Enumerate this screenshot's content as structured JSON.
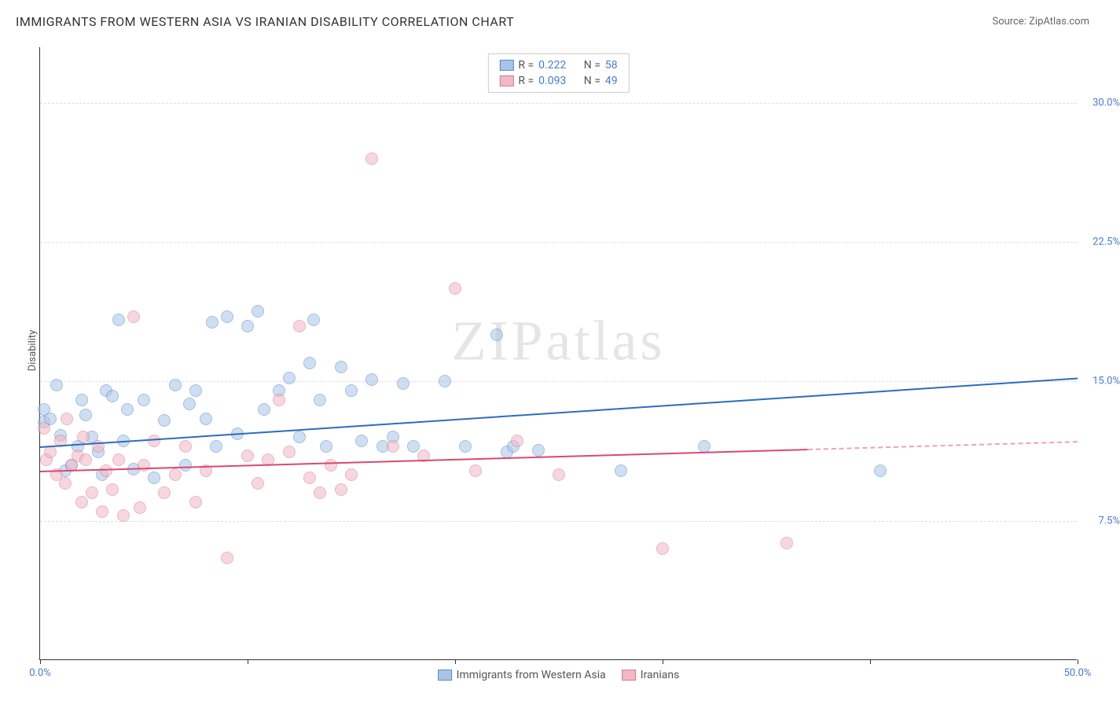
{
  "title": "IMMIGRANTS FROM WESTERN ASIA VS IRANIAN DISABILITY CORRELATION CHART",
  "source": "Source: ZipAtlas.com",
  "watermark": "ZIPatlas",
  "ylabel": "Disability",
  "chart": {
    "type": "scatter",
    "xlim": [
      0,
      50
    ],
    "ylim": [
      0,
      33
    ],
    "xticks": [
      0,
      10,
      20,
      30,
      40,
      50
    ],
    "xtick_labels": {
      "0": "0.0%",
      "50": "50.0%"
    },
    "yticks": [
      7.5,
      15.0,
      22.5,
      30.0
    ],
    "ytick_labels": [
      "7.5%",
      "15.0%",
      "22.5%",
      "30.0%"
    ],
    "grid_color": "#dddddd",
    "background_color": "#ffffff",
    "axis_color": "#333333",
    "marker_radius": 8,
    "marker_opacity": 0.55,
    "series": [
      {
        "name": "Immigrants from Western Asia",
        "fill": "#a8c5e8",
        "stroke": "#5a8bc4",
        "r": 0.222,
        "n": 58,
        "trend": {
          "x1": 0,
          "y1": 11.5,
          "x2": 50,
          "y2": 15.2,
          "color": "#2e6bc0",
          "dash_from_x": null
        },
        "points": [
          [
            0.2,
            12.8
          ],
          [
            0.2,
            13.5
          ],
          [
            0.5,
            13.0
          ],
          [
            0.8,
            14.8
          ],
          [
            1.2,
            10.2
          ],
          [
            1.5,
            10.5
          ],
          [
            1.8,
            11.5
          ],
          [
            2.0,
            14.0
          ],
          [
            2.2,
            13.2
          ],
          [
            2.5,
            12.0
          ],
          [
            2.8,
            11.2
          ],
          [
            3.0,
            10.0
          ],
          [
            3.2,
            14.5
          ],
          [
            3.5,
            14.2
          ],
          [
            4.0,
            11.8
          ],
          [
            4.2,
            13.5
          ],
          [
            4.5,
            10.3
          ],
          [
            5.0,
            14.0
          ],
          [
            5.5,
            9.8
          ],
          [
            6.0,
            12.9
          ],
          [
            6.5,
            14.8
          ],
          [
            7.0,
            10.5
          ],
          [
            7.2,
            13.8
          ],
          [
            7.5,
            14.5
          ],
          [
            8.0,
            13.0
          ],
          [
            8.3,
            18.2
          ],
          [
            8.5,
            11.5
          ],
          [
            9.0,
            18.5
          ],
          [
            9.5,
            12.2
          ],
          [
            10.0,
            18.0
          ],
          [
            10.5,
            18.8
          ],
          [
            10.8,
            13.5
          ],
          [
            11.5,
            14.5
          ],
          [
            12.0,
            15.2
          ],
          [
            12.5,
            12.0
          ],
          [
            13.0,
            16.0
          ],
          [
            13.2,
            18.3
          ],
          [
            13.5,
            14.0
          ],
          [
            13.8,
            11.5
          ],
          [
            14.5,
            15.8
          ],
          [
            15.0,
            14.5
          ],
          [
            15.5,
            11.8
          ],
          [
            16.0,
            15.1
          ],
          [
            16.5,
            11.5
          ],
          [
            17.0,
            12.0
          ],
          [
            17.5,
            14.9
          ],
          [
            18.0,
            11.5
          ],
          [
            19.5,
            15.0
          ],
          [
            20.5,
            11.5
          ],
          [
            22.0,
            17.5
          ],
          [
            22.5,
            11.2
          ],
          [
            22.8,
            11.5
          ],
          [
            24.0,
            11.3
          ],
          [
            28.0,
            10.2
          ],
          [
            32.0,
            11.5
          ],
          [
            40.5,
            10.2
          ],
          [
            1.0,
            12.1
          ],
          [
            3.8,
            18.3
          ]
        ]
      },
      {
        "name": "Iranians",
        "fill": "#f2b8c6",
        "stroke": "#d77a93",
        "r": 0.093,
        "n": 49,
        "trend": {
          "x1": 0,
          "y1": 10.2,
          "x2": 50,
          "y2": 11.8,
          "color": "#d94a6f",
          "dash_from_x": 37
        },
        "points": [
          [
            0.2,
            12.5
          ],
          [
            0.3,
            10.8
          ],
          [
            0.5,
            11.2
          ],
          [
            0.8,
            10.0
          ],
          [
            1.0,
            11.8
          ],
          [
            1.2,
            9.5
          ],
          [
            1.5,
            10.5
          ],
          [
            1.8,
            11.0
          ],
          [
            2.0,
            8.5
          ],
          [
            2.2,
            10.8
          ],
          [
            2.5,
            9.0
          ],
          [
            2.8,
            11.5
          ],
          [
            3.0,
            8.0
          ],
          [
            3.2,
            10.2
          ],
          [
            3.5,
            9.2
          ],
          [
            3.8,
            10.8
          ],
          [
            4.0,
            7.8
          ],
          [
            4.5,
            18.5
          ],
          [
            4.8,
            8.2
          ],
          [
            5.0,
            10.5
          ],
          [
            5.5,
            11.8
          ],
          [
            6.0,
            9.0
          ],
          [
            6.5,
            10.0
          ],
          [
            7.0,
            11.5
          ],
          [
            7.5,
            8.5
          ],
          [
            8.0,
            10.2
          ],
          [
            9.0,
            5.5
          ],
          [
            10.0,
            11.0
          ],
          [
            10.5,
            9.5
          ],
          [
            11.0,
            10.8
          ],
          [
            11.5,
            14.0
          ],
          [
            12.0,
            11.2
          ],
          [
            12.5,
            18.0
          ],
          [
            13.0,
            9.8
          ],
          [
            13.5,
            9.0
          ],
          [
            14.0,
            10.5
          ],
          [
            14.5,
            9.2
          ],
          [
            15.0,
            10.0
          ],
          [
            16.0,
            27.0
          ],
          [
            17.0,
            11.5
          ],
          [
            18.5,
            11.0
          ],
          [
            20.0,
            20.0
          ],
          [
            21.0,
            10.2
          ],
          [
            23.0,
            11.8
          ],
          [
            25.0,
            10.0
          ],
          [
            30.0,
            6.0
          ],
          [
            36.0,
            6.3
          ],
          [
            1.3,
            13.0
          ],
          [
            2.1,
            12.0
          ]
        ]
      }
    ]
  },
  "legend_bottom": [
    {
      "label": "Immigrants from Western Asia",
      "fill": "#a8c5e8",
      "stroke": "#5a8bc4"
    },
    {
      "label": "Iranians",
      "fill": "#f2b8c6",
      "stroke": "#d77a93"
    }
  ],
  "legend_labels": {
    "r": "R  =",
    "n": "N  ="
  }
}
